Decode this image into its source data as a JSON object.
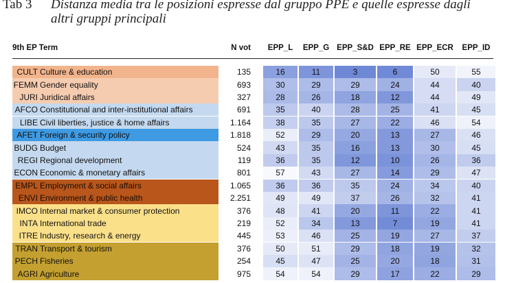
{
  "caption": {
    "tab": "Tab 3",
    "line1": "Distanza media tra le posizioni espresse dal gruppo PPE e quelle espresse dagli",
    "line2": "altri gruppi principali"
  },
  "headers": {
    "term": "9th EP Term",
    "nvot": "N vot",
    "cols": [
      "EPP_L",
      "EPP_G",
      "EPP_S&D",
      "EPP_RE",
      "EPP_ECR",
      "EPP_ID"
    ]
  },
  "rows": [
    {
      "code": "CULT",
      "name": "Culture & education",
      "nvot": "135",
      "vals": [
        "16",
        "11",
        "3",
        "6",
        "50",
        "55"
      ],
      "color": "#f2b48c"
    },
    {
      "code": "FEMM",
      "name": "Gender equality",
      "nvot": "693",
      "vals": [
        "30",
        "29",
        "29",
        "24",
        "44",
        "40"
      ],
      "color": "#f6ccb0"
    },
    {
      "code": "JURI",
      "name": "Juridical affairs",
      "nvot": "327",
      "vals": [
        "28",
        "26",
        "18",
        "12",
        "44",
        "49"
      ],
      "color": "#f6ccb0"
    },
    {
      "code": "AFCO",
      "name": "Constitutional and inter-institutional affairs",
      "nvot": "691",
      "vals": [
        "35",
        "40",
        "28",
        "25",
        "41",
        "45"
      ],
      "color": "#c4d9ef"
    },
    {
      "code": "LIBE",
      "name": "Civil liberties, justice & home affairs",
      "nvot": "1.164",
      "vals": [
        "38",
        "35",
        "27",
        "22",
        "46",
        "54"
      ],
      "color": "#c4d9ef"
    },
    {
      "code": "AFET",
      "name": "Foreign & security policy",
      "nvot": "1.818",
      "vals": [
        "52",
        "29",
        "20",
        "13",
        "27",
        "46"
      ],
      "color": "#3e9ae3"
    },
    {
      "code": "BUDG",
      "name": "Budget",
      "nvot": "524",
      "vals": [
        "43",
        "35",
        "16",
        "13",
        "30",
        "45"
      ],
      "color": "#c4d9ef"
    },
    {
      "code": "REGI",
      "name": "Regional development",
      "nvot": "119",
      "vals": [
        "36",
        "35",
        "12",
        "10",
        "26",
        "36"
      ],
      "color": "#c4d9ef"
    },
    {
      "code": "ECON",
      "name": "Economic & monetary affairs",
      "nvot": "801",
      "vals": [
        "57",
        "43",
        "27",
        "14",
        "29",
        "47"
      ],
      "color": "#c4d9ef"
    },
    {
      "code": "EMPL",
      "name": "Employment & social affairs",
      "nvot": "1.065",
      "vals": [
        "36",
        "36",
        "35",
        "24",
        "34",
        "40"
      ],
      "color": "#b8561c"
    },
    {
      "code": "ENVI",
      "name": "Environment & public health",
      "nvot": "2.251",
      "vals": [
        "49",
        "49",
        "37",
        "26",
        "32",
        "41"
      ],
      "color": "#b8561c"
    },
    {
      "code": "IMCO",
      "name": "Internal market & consumer protection",
      "nvot": "376",
      "vals": [
        "48",
        "41",
        "20",
        "11",
        "22",
        "41"
      ],
      "color": "#fbe08a"
    },
    {
      "code": "INTA",
      "name": "International trade",
      "nvot": "219",
      "vals": [
        "52",
        "34",
        "13",
        "7",
        "19",
        "41"
      ],
      "color": "#fbe08a"
    },
    {
      "code": "ITRE",
      "name": "Industry, research & energy",
      "nvot": "445",
      "vals": [
        "53",
        "46",
        "25",
        "19",
        "27",
        "37"
      ],
      "color": "#fbe08a"
    },
    {
      "code": "TRAN",
      "name": "Transport & tourism",
      "nvot": "376",
      "vals": [
        "50",
        "51",
        "29",
        "18",
        "19",
        "32"
      ],
      "color": "#c4a030"
    },
    {
      "code": "PECH",
      "name": "Fisheries",
      "nvot": "254",
      "vals": [
        "45",
        "47",
        "25",
        "20",
        "18",
        "31"
      ],
      "color": "#c4a030"
    },
    {
      "code": "AGRI",
      "name": "Agriculture",
      "nvot": "975",
      "vals": [
        "54",
        "54",
        "29",
        "17",
        "22",
        "29"
      ],
      "color": "#c4a030"
    }
  ]
}
